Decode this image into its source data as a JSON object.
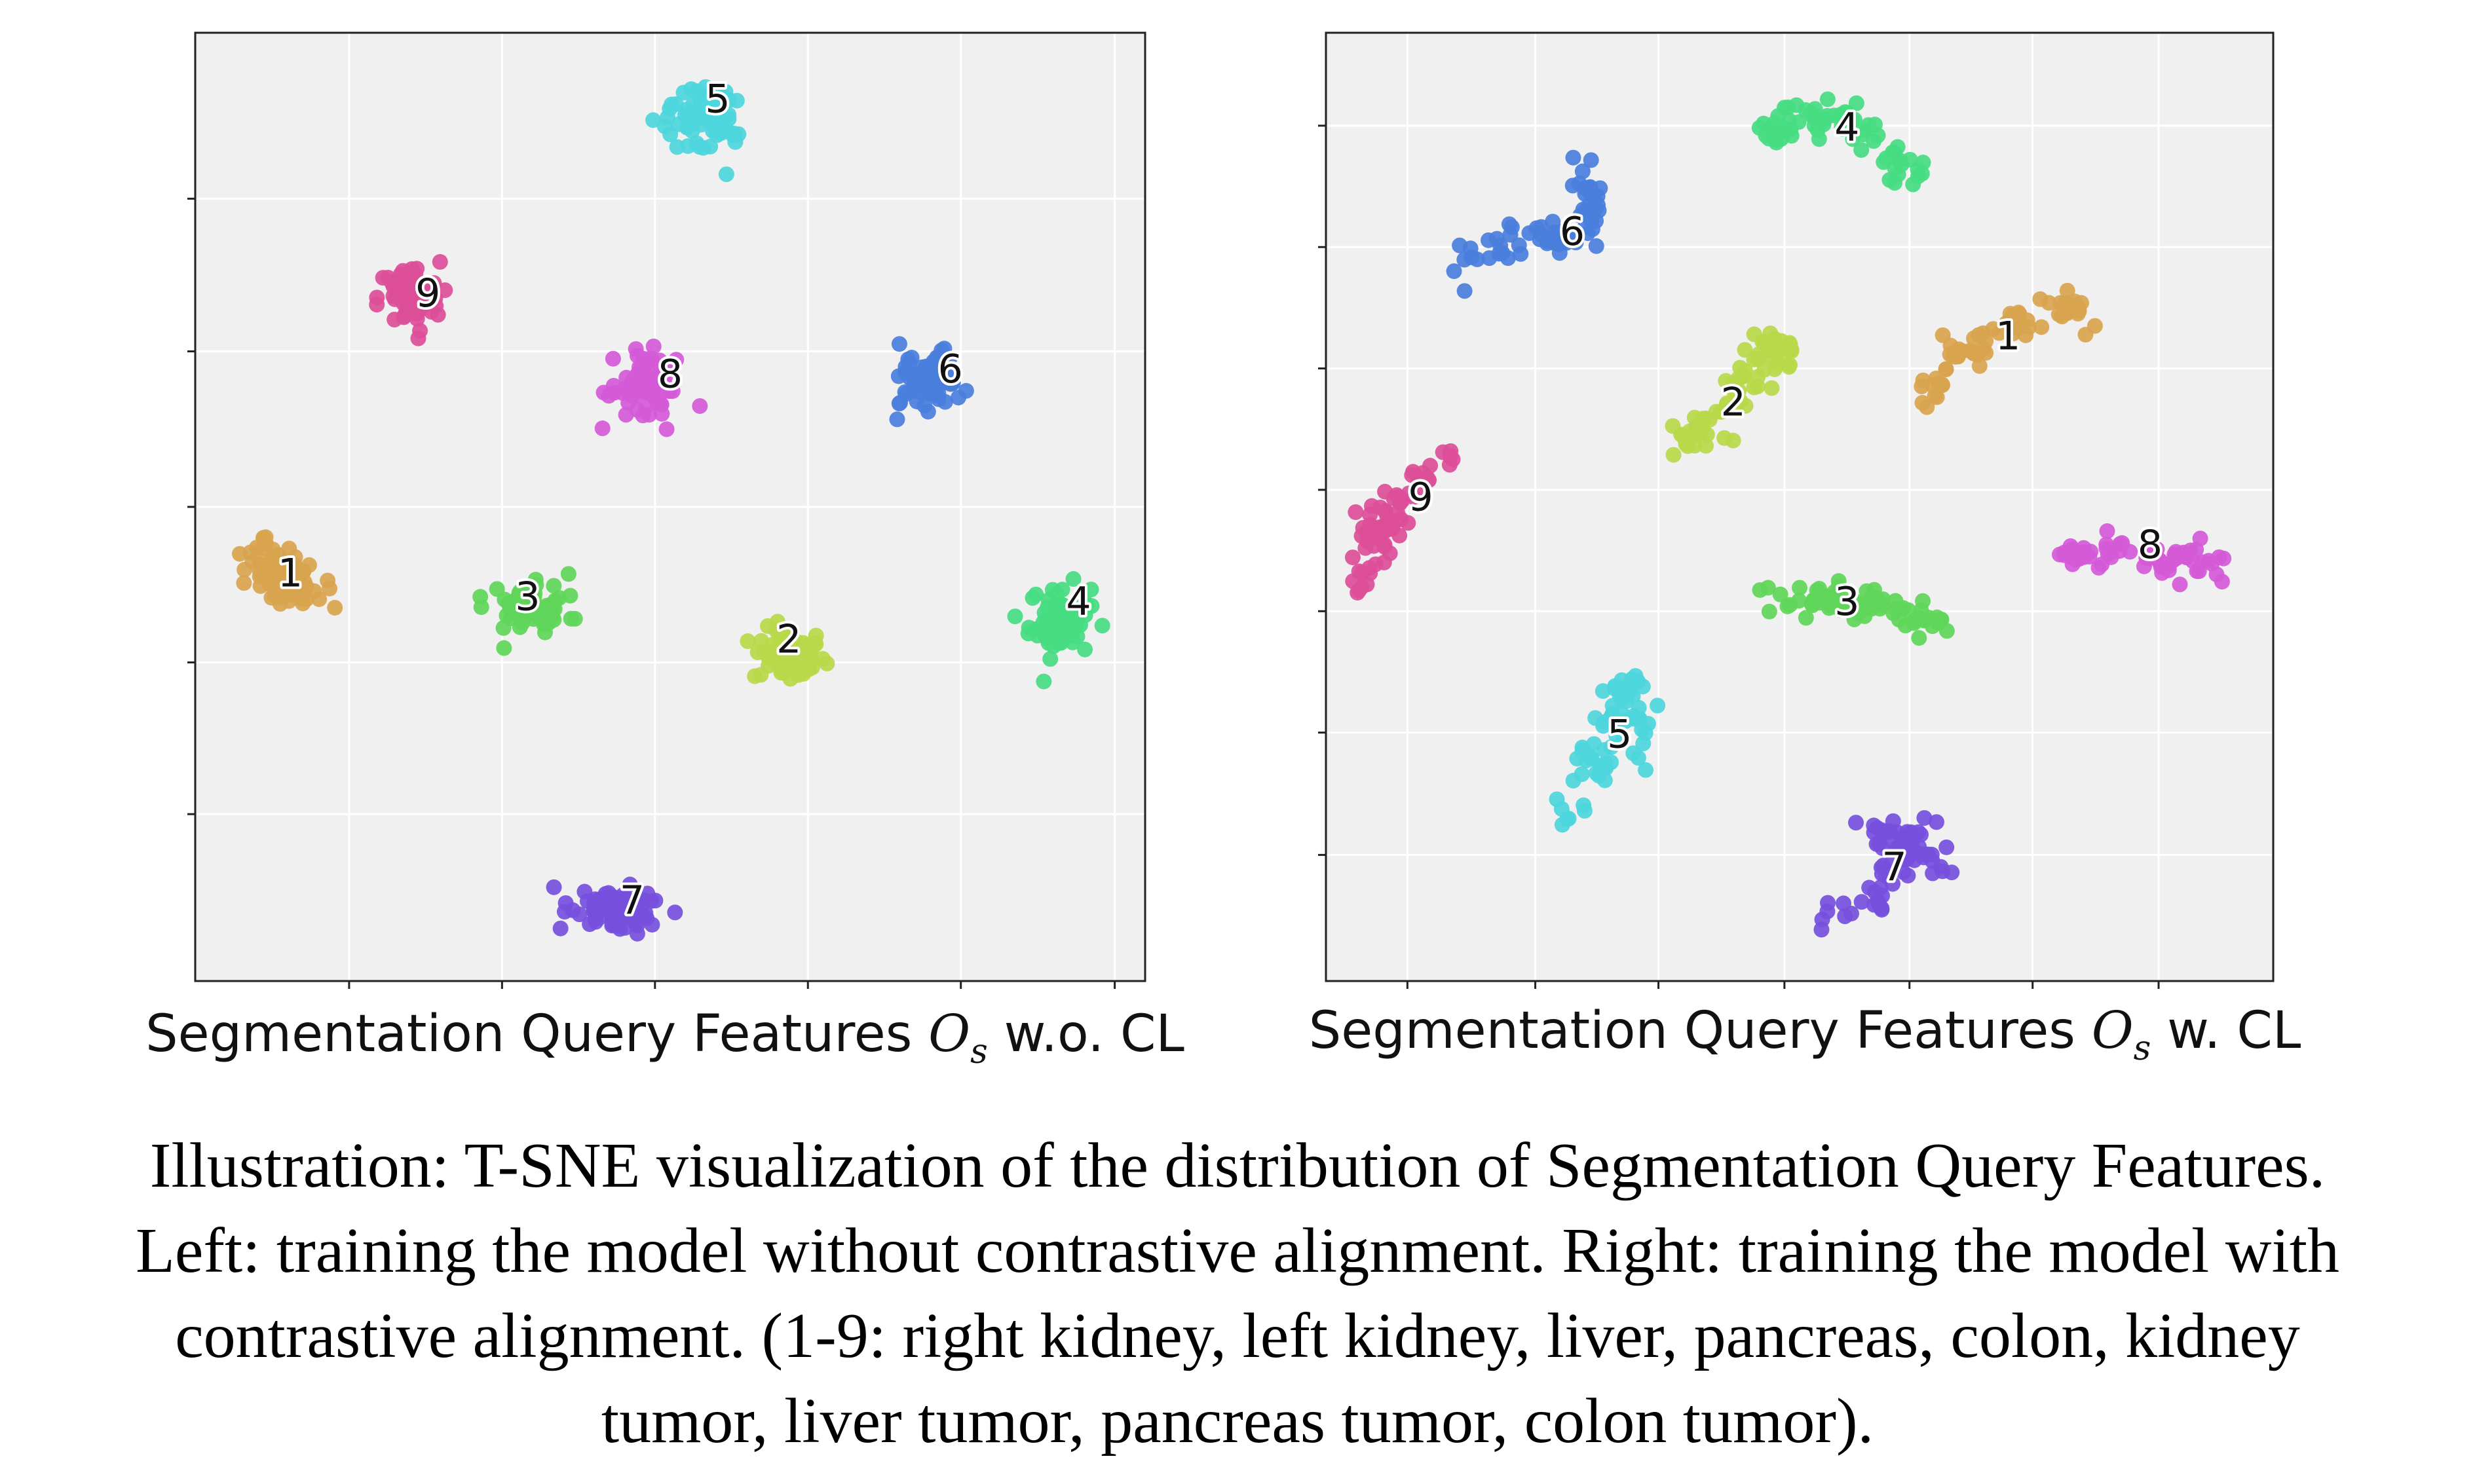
{
  "caption": "Illustration: T-SNE visualization of the distribution of Segmentation Query Features. Left: training the model without contrastive alignment. Right: training the model with contrastive alignment. (1-9: right kidney, left kidney, liver, pancreas, colon, kidney tumor, liver tumor, pancreas tumor, colon tumor).",
  "colors": {
    "1": "#d9a44e",
    "2": "#b8d94a",
    "3": "#5fd65a",
    "4": "#46dc82",
    "5": "#4dd6dc",
    "6": "#4a7edc",
    "7": "#7650dc",
    "8": "#d45ad8",
    "9": "#dc4e98",
    "panel_bg": "#f0f0f0"
  },
  "chart_data": [
    {
      "type": "scatter",
      "name_prefix": "left",
      "xlabel_parts": [
        "Segmentation Query Features ",
        "O",
        "s",
        " w.o. CL"
      ],
      "xlim": [
        0,
        100
      ],
      "ylim": [
        0,
        100
      ],
      "grid": true,
      "xticks": [
        16.2,
        32.3,
        48.4,
        64.5,
        80.6,
        96.8
      ],
      "yticks": [
        17.6,
        33.6,
        50.0,
        66.4,
        82.5
      ],
      "clusters": [
        {
          "id": "1",
          "center": [
            9.3,
            43
          ],
          "spread": [
            3.2,
            5.5
          ],
          "n": 70,
          "angle": 60
        },
        {
          "id": "2",
          "center": [
            62.5,
            34.3
          ],
          "spread": [
            4.2,
            3.2
          ],
          "n": 70,
          "angle": 0
        },
        {
          "id": "3",
          "center": [
            35,
            39.5
          ],
          "spread": [
            2.8,
            4.8
          ],
          "n": 70,
          "angle": 90
        },
        {
          "id": "4",
          "center": [
            91,
            38
          ],
          "spread": [
            3.6,
            4.2
          ],
          "n": 70,
          "angle": 0
        },
        {
          "id": "5",
          "center": [
            53.5,
            91
          ],
          "spread": [
            5,
            3.4
          ],
          "n": 70,
          "angle": -30
        },
        {
          "id": "6",
          "center": [
            77.5,
            63
          ],
          "spread": [
            4.2,
            3.6
          ],
          "n": 70,
          "angle": 30
        },
        {
          "id": "7",
          "center": [
            44.5,
            7.5
          ],
          "spread": [
            5.5,
            2.6
          ],
          "n": 70,
          "angle": -10
        },
        {
          "id": "8",
          "center": [
            47.5,
            63
          ],
          "spread": [
            4.2,
            3.6
          ],
          "n": 70,
          "angle": -35
        },
        {
          "id": "9",
          "center": [
            22.5,
            72
          ],
          "spread": [
            3.6,
            4.2
          ],
          "n": 70,
          "angle": 0
        }
      ],
      "labels": [
        {
          "text": "1",
          "x": 10,
          "y": 43
        },
        {
          "text": "2",
          "x": 62.5,
          "y": 36
        },
        {
          "text": "3",
          "x": 35,
          "y": 40.5
        },
        {
          "text": "4",
          "x": 93,
          "y": 40
        },
        {
          "text": "5",
          "x": 55,
          "y": 93
        },
        {
          "text": "6",
          "x": 79.5,
          "y": 64.5
        },
        {
          "text": "7",
          "x": 46,
          "y": 8.5
        },
        {
          "text": "8",
          "x": 50,
          "y": 64
        },
        {
          "text": "9",
          "x": 24.5,
          "y": 72.5
        }
      ]
    },
    {
      "type": "scatter",
      "name_prefix": "right",
      "xlabel_parts": [
        "Segmentation Query Features ",
        "O",
        "s",
        " w. CL"
      ],
      "xlim": [
        0,
        100
      ],
      "ylim": [
        0,
        100
      ],
      "grid": true,
      "xticks": [
        8.6,
        22.1,
        35.1,
        48.4,
        61.6,
        74.6,
        87.9
      ],
      "yticks": [
        13.3,
        26.2,
        39.0,
        51.8,
        64.6,
        77.4,
        90.2
      ],
      "clusters": [
        {
          "id": "1",
          "path": [
            [
              63,
              61
            ],
            [
              66,
              66
            ],
            [
              70,
              68
            ],
            [
              75,
              71
            ],
            [
              80,
              71
            ]
          ],
          "spread": 1.6,
          "n": 70
        },
        {
          "id": "2",
          "path": [
            [
              36,
              55
            ],
            [
              40,
              58
            ],
            [
              44,
              62
            ],
            [
              46,
              66
            ],
            [
              48,
              66
            ]
          ],
          "spread": 2.0,
          "n": 70
        },
        {
          "id": "3",
          "path": [
            [
              47,
              41
            ],
            [
              52,
              40
            ],
            [
              57,
              40
            ],
            [
              61,
              39
            ],
            [
              64,
              38
            ]
          ],
          "spread": 1.6,
          "n": 70
        },
        {
          "id": "4",
          "path": [
            [
              46,
              89
            ],
            [
              50,
              91
            ],
            [
              55,
              91
            ],
            [
              59,
              87
            ],
            [
              63,
              85
            ]
          ],
          "spread": 1.6,
          "n": 70
        },
        {
          "id": "5",
          "path": [
            [
              25,
              17
            ],
            [
              28,
              22
            ],
            [
              30,
              27
            ],
            [
              32,
              32
            ],
            [
              34,
              23
            ]
          ],
          "spread": 1.8,
          "n": 70
        },
        {
          "id": "6",
          "path": [
            [
              15,
              76
            ],
            [
              20,
              78
            ],
            [
              24,
              78
            ],
            [
              27,
              79
            ],
            [
              28,
              83
            ],
            [
              27,
              86
            ]
          ],
          "spread": 1.5,
          "n": 70
        },
        {
          "id": "7",
          "path": [
            [
              52,
              7
            ],
            [
              57,
              8
            ],
            [
              60,
              12
            ],
            [
              62,
              15
            ],
            [
              65,
              13
            ],
            [
              57,
              16
            ]
          ],
          "spread": 1.6,
          "n": 70
        },
        {
          "id": "8",
          "path": [
            [
              78,
              45
            ],
            [
              82,
              45
            ],
            [
              86,
              45
            ],
            [
              90,
              44
            ],
            [
              94,
              44
            ]
          ],
          "spread": 1.5,
          "n": 70
        },
        {
          "id": "9",
          "path": [
            [
              4,
              41
            ],
            [
              5,
              46
            ],
            [
              7,
              50
            ],
            [
              10,
              53
            ],
            [
              13,
              55
            ]
          ],
          "spread": 1.6,
          "n": 70
        }
      ],
      "labels": [
        {
          "text": "1",
          "x": 72,
          "y": 68
        },
        {
          "text": "2",
          "x": 43,
          "y": 61
        },
        {
          "text": "3",
          "x": 55,
          "y": 40
        },
        {
          "text": "4",
          "x": 55,
          "y": 90
        },
        {
          "text": "5",
          "x": 31,
          "y": 26
        },
        {
          "text": "6",
          "x": 26,
          "y": 79
        },
        {
          "text": "7",
          "x": 60,
          "y": 12
        },
        {
          "text": "8",
          "x": 87,
          "y": 46
        },
        {
          "text": "9",
          "x": 10,
          "y": 51
        }
      ]
    }
  ]
}
